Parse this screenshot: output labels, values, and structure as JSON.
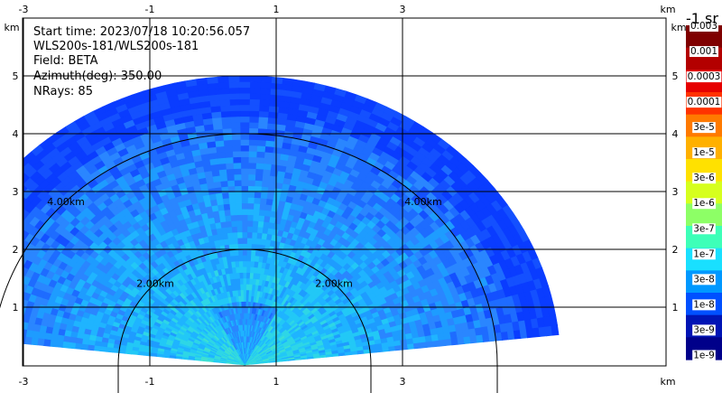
{
  "info": {
    "start_time": "Start time: 2023/07/18 10:20:56.057",
    "instrument": "WLS200s-181/WLS200s-181",
    "field": "Field: BETA",
    "azimuth": "Azimuth(deg): 350.00",
    "nrays": "NRays: 85"
  },
  "units": {
    "km": "km",
    "colorbar_unit": "-1 sr"
  },
  "chart_data": {
    "type": "heatmap",
    "title": "",
    "projection": "RHI polar sector (range-height)",
    "x_axis": {
      "label": "km",
      "range": [
        -3.5,
        4.2
      ],
      "ticks": [
        -3,
        -1,
        1,
        3
      ]
    },
    "y_axis": {
      "label": "km",
      "range": [
        0,
        5.2
      ],
      "ticks": [
        1,
        2,
        3,
        4,
        5
      ]
    },
    "range_rings": [
      {
        "radius_km": 2.0,
        "label": "2.00km"
      },
      {
        "radius_km": 4.0,
        "label": "4.00km"
      }
    ],
    "sector": {
      "max_range_km": 5.0,
      "elevation_min_deg": 6,
      "elevation_max_deg": 174,
      "apex_km": [
        0.5,
        0
      ]
    },
    "colorbar": {
      "scale": "log",
      "tick_labels": [
        "0.003",
        "0.001",
        "0.0003",
        "0.0001",
        "3e-5",
        "1e-5",
        "3e-6",
        "1e-6",
        "3e-7",
        "1e-7",
        "3e-8",
        "1e-8",
        "3e-9",
        "1e-9"
      ],
      "colors": [
        "#7f0000",
        "#b30000",
        "#e60000",
        "#ff3300",
        "#ff7a00",
        "#ffb000",
        "#ffe100",
        "#d6ff1e",
        "#8dff66",
        "#3dffb8",
        "#19e0ff",
        "#0098ff",
        "#0050ff",
        "#0014b4",
        "#00008a"
      ]
    }
  }
}
